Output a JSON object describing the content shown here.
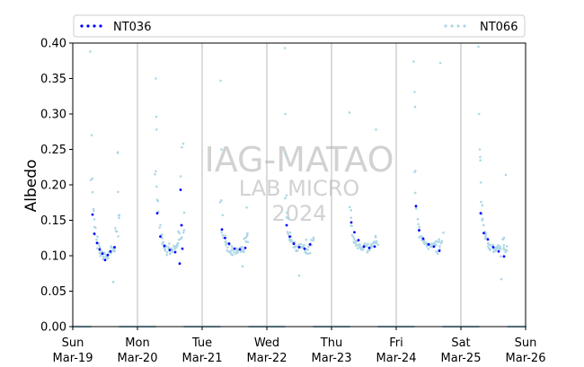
{
  "chart_data": {
    "type": "scatter",
    "title": "",
    "ylabel": "Albedo",
    "xlabel": "",
    "ylim": [
      0,
      0.4
    ],
    "xlim": [
      "2024-03-19",
      "2024-03-26"
    ],
    "yticks": [
      "0.00",
      "0.05",
      "0.10",
      "0.15",
      "0.20",
      "0.25",
      "0.30",
      "0.35",
      "0.40"
    ],
    "xticks": [
      {
        "day": "Sun",
        "date": "Mar-19",
        "x": "2024-03-19"
      },
      {
        "day": "Mon",
        "date": "Mar-20",
        "x": "2024-03-20"
      },
      {
        "day": "Tue",
        "date": "Mar-21",
        "x": "2024-03-21"
      },
      {
        "day": "Wed",
        "date": "Mar-22",
        "x": "2024-03-22"
      },
      {
        "day": "Thu",
        "date": "Mar-23",
        "x": "2024-03-23"
      },
      {
        "day": "Fri",
        "date": "Mar-24",
        "x": "2024-03-24"
      },
      {
        "day": "Sat",
        "date": "Mar-25",
        "x": "2024-03-25"
      },
      {
        "day": "Sun",
        "date": "Mar-26",
        "x": "2024-03-26"
      }
    ],
    "vertical_grid": true,
    "legend": {
      "placement": "top",
      "columns": 2
    },
    "watermark": [
      "IAG-MATAO",
      "LAB MICRO",
      "2024"
    ],
    "series": [
      {
        "name": "NT036",
        "color": "#0000ff",
        "points": [
          [
            "2024-03-19 07:20",
            0.158
          ],
          [
            "2024-03-19 08:00",
            0.131
          ],
          [
            "2024-03-19 09:00",
            0.118
          ],
          [
            "2024-03-19 10:00",
            0.109
          ],
          [
            "2024-03-19 11:00",
            0.103
          ],
          [
            "2024-03-19 12:00",
            0.094
          ],
          [
            "2024-03-19 13:00",
            0.101
          ],
          [
            "2024-03-19 14:00",
            0.106
          ],
          [
            "2024-03-19 15:30",
            0.112
          ],
          [
            "2024-03-20 07:20",
            0.16
          ],
          [
            "2024-03-20 08:30",
            0.127
          ],
          [
            "2024-03-20 10:00",
            0.114
          ],
          [
            "2024-03-20 12:00",
            0.108
          ],
          [
            "2024-03-20 14:00",
            0.105
          ],
          [
            "2024-03-20 15:40",
            0.089
          ],
          [
            "2024-03-20 16:00",
            0.193
          ],
          [
            "2024-03-20 16:20",
            0.143
          ],
          [
            "2024-03-20 16:40",
            0.11
          ],
          [
            "2024-03-21 07:20",
            0.137
          ],
          [
            "2024-03-21 08:30",
            0.125
          ],
          [
            "2024-03-21 10:00",
            0.117
          ],
          [
            "2024-03-21 12:00",
            0.11
          ],
          [
            "2024-03-21 14:00",
            0.109
          ],
          [
            "2024-03-21 16:00",
            0.111
          ],
          [
            "2024-03-22 07:20",
            0.143
          ],
          [
            "2024-03-22 08:30",
            0.127
          ],
          [
            "2024-03-22 10:00",
            0.117
          ],
          [
            "2024-03-22 12:00",
            0.112
          ],
          [
            "2024-03-22 14:00",
            0.11
          ],
          [
            "2024-03-22 16:00",
            0.116
          ],
          [
            "2024-03-23 07:20",
            0.147
          ],
          [
            "2024-03-23 08:30",
            0.133
          ],
          [
            "2024-03-23 10:00",
            0.122
          ],
          [
            "2024-03-23 12:00",
            0.113
          ],
          [
            "2024-03-23 14:00",
            0.111
          ],
          [
            "2024-03-23 16:00",
            0.113
          ],
          [
            "2024-03-24 07:20",
            0.17
          ],
          [
            "2024-03-24 08:30",
            0.136
          ],
          [
            "2024-03-24 10:00",
            0.124
          ],
          [
            "2024-03-24 12:00",
            0.116
          ],
          [
            "2024-03-24 14:00",
            0.113
          ],
          [
            "2024-03-24 16:00",
            0.107
          ],
          [
            "2024-03-25 07:20",
            0.16
          ],
          [
            "2024-03-25 08:30",
            0.132
          ],
          [
            "2024-03-25 10:00",
            0.123
          ],
          [
            "2024-03-25 12:00",
            0.112
          ],
          [
            "2024-03-25 14:00",
            0.106
          ],
          [
            "2024-03-25 16:00",
            0.099
          ]
        ]
      },
      {
        "name": "NT066",
        "color": "#add8e6",
        "profile": {
          "start_hour": 7.0,
          "end_hour": 17.2,
          "points_per_day": 34,
          "start_values": [
            0.215,
            0.225,
            0.17,
            0.18,
            0.165,
            0.215,
            0.235
          ],
          "min_values": [
            0.098,
            0.105,
            0.106,
            0.108,
            0.11,
            0.111,
            0.108
          ],
          "end_values": [
            0.15,
            0.15,
            0.122,
            0.12,
            0.12,
            0.122,
            0.12
          ]
        },
        "night_value": 0.0,
        "outliers": [
          [
            "2024-03-19 06:30",
            0.388
          ],
          [
            "2024-03-19 07:00",
            0.27
          ],
          [
            "2024-03-19 15:00",
            0.063
          ],
          [
            "2024-03-19 16:40",
            0.245
          ],
          [
            "2024-03-19 16:45",
            0.246
          ],
          [
            "2024-03-19 16:50",
            0.19
          ],
          [
            "2024-03-20 06:50",
            0.35
          ],
          [
            "2024-03-20 07:00",
            0.296
          ],
          [
            "2024-03-20 07:05",
            0.278
          ],
          [
            "2024-03-20 16:30",
            0.253
          ],
          [
            "2024-03-20 17:00",
            0.258
          ],
          [
            "2024-03-20 16:00",
            0.212
          ],
          [
            "2024-03-21 06:50",
            0.347
          ],
          [
            "2024-03-21 07:10",
            0.25
          ],
          [
            "2024-03-21 16:30",
            0.168
          ],
          [
            "2024-03-21 15:00",
            0.085
          ],
          [
            "2024-03-22 06:40",
            0.393
          ],
          [
            "2024-03-22 06:50",
            0.3
          ],
          [
            "2024-03-22 07:00",
            0.243
          ],
          [
            "2024-03-22 12:00",
            0.072
          ],
          [
            "2024-03-23 06:40",
            0.302
          ],
          [
            "2024-03-23 16:30",
            0.278
          ],
          [
            "2024-03-24 06:30",
            0.374
          ],
          [
            "2024-03-24 06:50",
            0.331
          ],
          [
            "2024-03-24 07:00",
            0.31
          ],
          [
            "2024-03-24 16:20",
            0.372
          ],
          [
            "2024-03-25 06:30",
            0.395
          ],
          [
            "2024-03-25 06:45",
            0.3
          ],
          [
            "2024-03-25 07:00",
            0.25
          ],
          [
            "2024-03-25 16:40",
            0.214
          ],
          [
            "2024-03-25 15:00",
            0.067
          ]
        ]
      }
    ]
  }
}
